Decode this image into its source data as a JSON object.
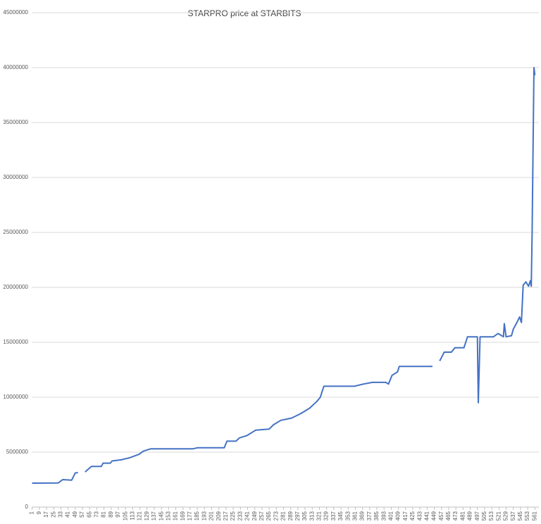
{
  "chart_data": {
    "type": "line",
    "title": "STARPRO price at STARBITS",
    "x": [
      1,
      30,
      35,
      45,
      49,
      52,
      56,
      60,
      67,
      78,
      80,
      88,
      90,
      100,
      110,
      120,
      125,
      133,
      137,
      140,
      180,
      185,
      215,
      218,
      228,
      232,
      240,
      250,
      265,
      270,
      278,
      290,
      300,
      310,
      318,
      322,
      324,
      326,
      360,
      370,
      380,
      395,
      398,
      402,
      408,
      410,
      440,
      447,
      450,
      455,
      460,
      468,
      472,
      482,
      486,
      497,
      498,
      500,
      515,
      520,
      526,
      527,
      529,
      535,
      537,
      541,
      544,
      546,
      548,
      551,
      554,
      556,
      557,
      558,
      560,
      561
    ],
    "series": [
      {
        "name": "STARPRO",
        "color": "#4472c4",
        "values": [
          2180000,
          2200000,
          2500000,
          2450000,
          3100000,
          3150000,
          null,
          3200000,
          3700000,
          3700000,
          4000000,
          4000000,
          4200000,
          4300000,
          4500000,
          4800000,
          5100000,
          5300000,
          5300000,
          5300000,
          5300000,
          5400000,
          5400000,
          6000000,
          6000000,
          6300000,
          6500000,
          7000000,
          7100000,
          7500000,
          7900000,
          8100000,
          8500000,
          9000000,
          9600000,
          10000000,
          10500000,
          11000000,
          11000000,
          11200000,
          11350000,
          11350000,
          11200000,
          12000000,
          12300000,
          12800000,
          12800000,
          12800000,
          null,
          13300000,
          14100000,
          14100000,
          14500000,
          14500000,
          15500000,
          15500000,
          9500000,
          15500000,
          15500000,
          15800000,
          15500000,
          16700000,
          15500000,
          15600000,
          16200000,
          16800000,
          17300000,
          16800000,
          20200000,
          20500000,
          20100000,
          20600000,
          20100000,
          25000000,
          40000000,
          39300000
        ]
      }
    ],
    "xlim": [
      0.5,
      565.5
    ],
    "xticks": [
      1,
      9,
      17,
      25,
      33,
      41,
      49,
      57,
      65,
      73,
      81,
      89,
      97,
      105,
      113,
      121,
      129,
      137,
      145,
      153,
      161,
      169,
      177,
      185,
      193,
      201,
      209,
      217,
      225,
      233,
      241,
      249,
      257,
      265,
      273,
      281,
      289,
      297,
      305,
      313,
      321,
      329,
      337,
      345,
      353,
      361,
      369,
      377,
      385,
      393,
      401,
      409,
      417,
      425,
      433,
      441,
      449,
      457,
      465,
      473,
      481,
      489,
      497,
      505,
      513,
      521,
      529,
      537,
      545,
      553,
      561
    ],
    "ylim": [
      0,
      45000000
    ],
    "yticks": [
      0,
      5000000,
      10000000,
      15000000,
      20000000,
      25000000,
      30000000,
      35000000,
      40000000,
      45000000
    ],
    "grid": true
  }
}
